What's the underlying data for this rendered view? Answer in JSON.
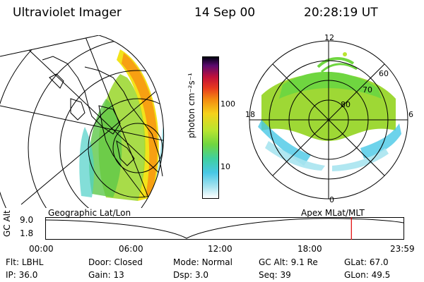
{
  "header": {
    "title": "Ultraviolet Imager",
    "date": "14 Sep 00",
    "time": "20:28:19 UT"
  },
  "colorbar": {
    "unit_label": "photon cm⁻²s⁻¹",
    "ticks": [
      "100",
      "10"
    ]
  },
  "polar": {
    "mlt_labels": {
      "top": "12",
      "left": "18",
      "right": "6",
      "bottom": "0"
    },
    "lat_labels": [
      "60",
      "70",
      "80"
    ]
  },
  "panel_labels": {
    "geographic": "Geographic Lat/Lon",
    "apex": "Apex MLat/MLT"
  },
  "gc_alt_plot": {
    "axis_label": "GC Alt",
    "y_ticks": [
      "9.0",
      "1.8"
    ],
    "x_ticks": [
      "00:00",
      "06:00",
      "12:00",
      "18:00",
      "23:59"
    ],
    "marker_time_hours": 20.47,
    "colors": {
      "marker": "#e00000"
    }
  },
  "status": {
    "row1": [
      {
        "label": "Flt:",
        "value": "LBHL"
      },
      {
        "label": "Door:",
        "value": "Closed"
      },
      {
        "label": "Mode:",
        "value": "Normal"
      },
      {
        "label": "GC Alt:",
        "value": "9.1 Re"
      },
      {
        "label": "GLat:",
        "value": "67.0"
      }
    ],
    "row2": [
      {
        "label": "IP:",
        "value": "36.0"
      },
      {
        "label": "Gain:",
        "value": "13"
      },
      {
        "label": "Dsp:",
        "value": "3.0"
      },
      {
        "label": "Seq:",
        "value": "39"
      },
      {
        "label": "GLon:",
        "value": "49.5"
      }
    ]
  }
}
